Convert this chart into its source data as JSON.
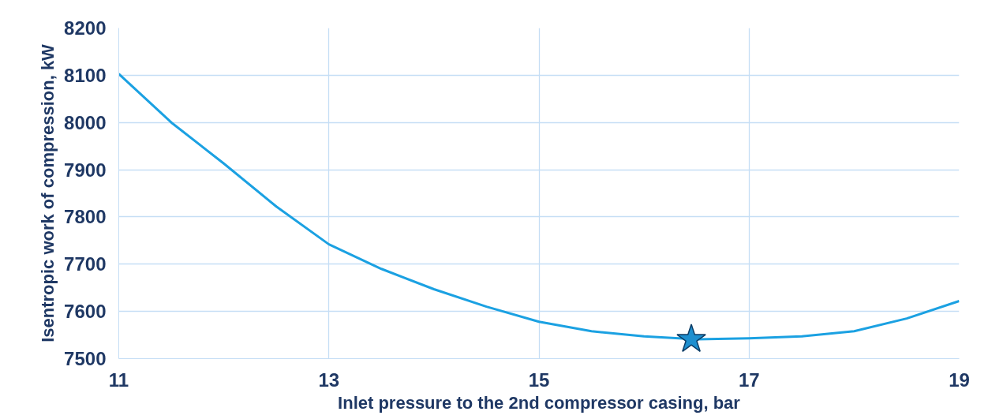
{
  "chart_data": {
    "type": "line",
    "xlabel": "Inlet pressure to the 2nd compressor casing, bar",
    "ylabel": "Isentropic work of compression, kW",
    "xlim": [
      11,
      19
    ],
    "xticks": [
      11,
      13,
      15,
      17,
      19
    ],
    "ylim": [
      7500,
      8200
    ],
    "yticks": [
      7500,
      7600,
      7700,
      7800,
      7900,
      8000,
      8100,
      8200
    ],
    "grid": true,
    "series": [
      {
        "color": "#1ba1e2",
        "x": [
          11,
          11.5,
          12,
          12.5,
          13,
          13.5,
          14,
          14.5,
          15,
          15.5,
          16,
          16.5,
          17,
          17.5,
          18,
          18.5,
          19
        ],
        "values": [
          8103,
          8000,
          7913,
          7822,
          7742,
          7690,
          7647,
          7610,
          7578,
          7558,
          7547,
          7541,
          7543,
          7547,
          7558,
          7585,
          7622
        ]
      },
      {
        "type": "scatter",
        "marker": "star",
        "color": "#1e8fcf",
        "x": [
          16.45
        ],
        "values": [
          7541
        ]
      }
    ]
  }
}
